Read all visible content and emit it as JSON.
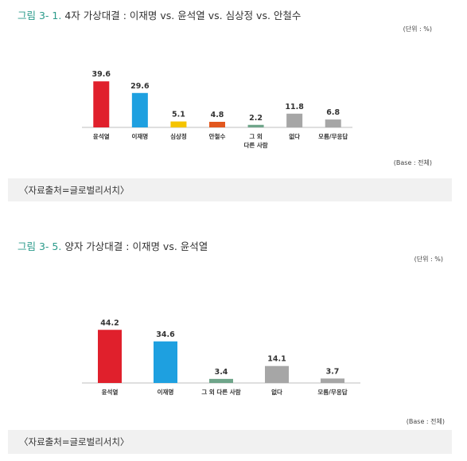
{
  "colors": {
    "red": "#e0202c",
    "blue": "#1ea0e0",
    "yellow": "#f5c400",
    "orange": "#e2571e",
    "green": "#6fa58a",
    "gray": "#a6a6a6",
    "axis": "#bfbfbf"
  },
  "chart_data": [
    {
      "type": "bar",
      "title_prefix": "그림 3- 1.",
      "title": "4자 가상대결 : 이재명 vs. 윤석열 vs. 심상정 vs. 안철수",
      "unit": "(단위 : %)",
      "base": "(Base : 전체)",
      "source": "〈자료출처=글로벌리서치〉",
      "categories": [
        [
          "윤석열"
        ],
        [
          "이재명"
        ],
        [
          "심상정"
        ],
        [
          "안철수"
        ],
        [
          "그 외",
          "다른 사람"
        ],
        [
          "없다"
        ],
        [
          "모름/무응답"
        ]
      ],
      "values": [
        39.6,
        29.6,
        5.1,
        4.8,
        2.2,
        11.8,
        6.8
      ],
      "value_labels": [
        "39.6",
        "29.6",
        "5.1",
        "4.8",
        "2.2",
        "11.8",
        "6.8"
      ],
      "bar_colors": [
        "red",
        "blue",
        "yellow",
        "orange",
        "green",
        "gray",
        "gray"
      ],
      "ylim": [
        0,
        50
      ]
    },
    {
      "type": "bar",
      "title_prefix": "그림 3- 5.",
      "title": "양자 가상대결 : 이재명 vs. 윤석열",
      "unit": "(단위 : %)",
      "base": "(Base : 전체)",
      "source": "〈자료출처=글로벌리서치〉",
      "categories": [
        [
          "윤석열"
        ],
        [
          "이재명"
        ],
        [
          "그 외 다른 사람"
        ],
        [
          "없다"
        ],
        [
          "모름/무응답"
        ]
      ],
      "values": [
        44.2,
        34.6,
        3.4,
        14.1,
        3.7
      ],
      "value_labels": [
        "44.2",
        "34.6",
        "3.4",
        "14.1",
        "3.7"
      ],
      "bar_colors": [
        "red",
        "blue",
        "green",
        "gray",
        "gray"
      ],
      "ylim": [
        0,
        50
      ]
    }
  ]
}
